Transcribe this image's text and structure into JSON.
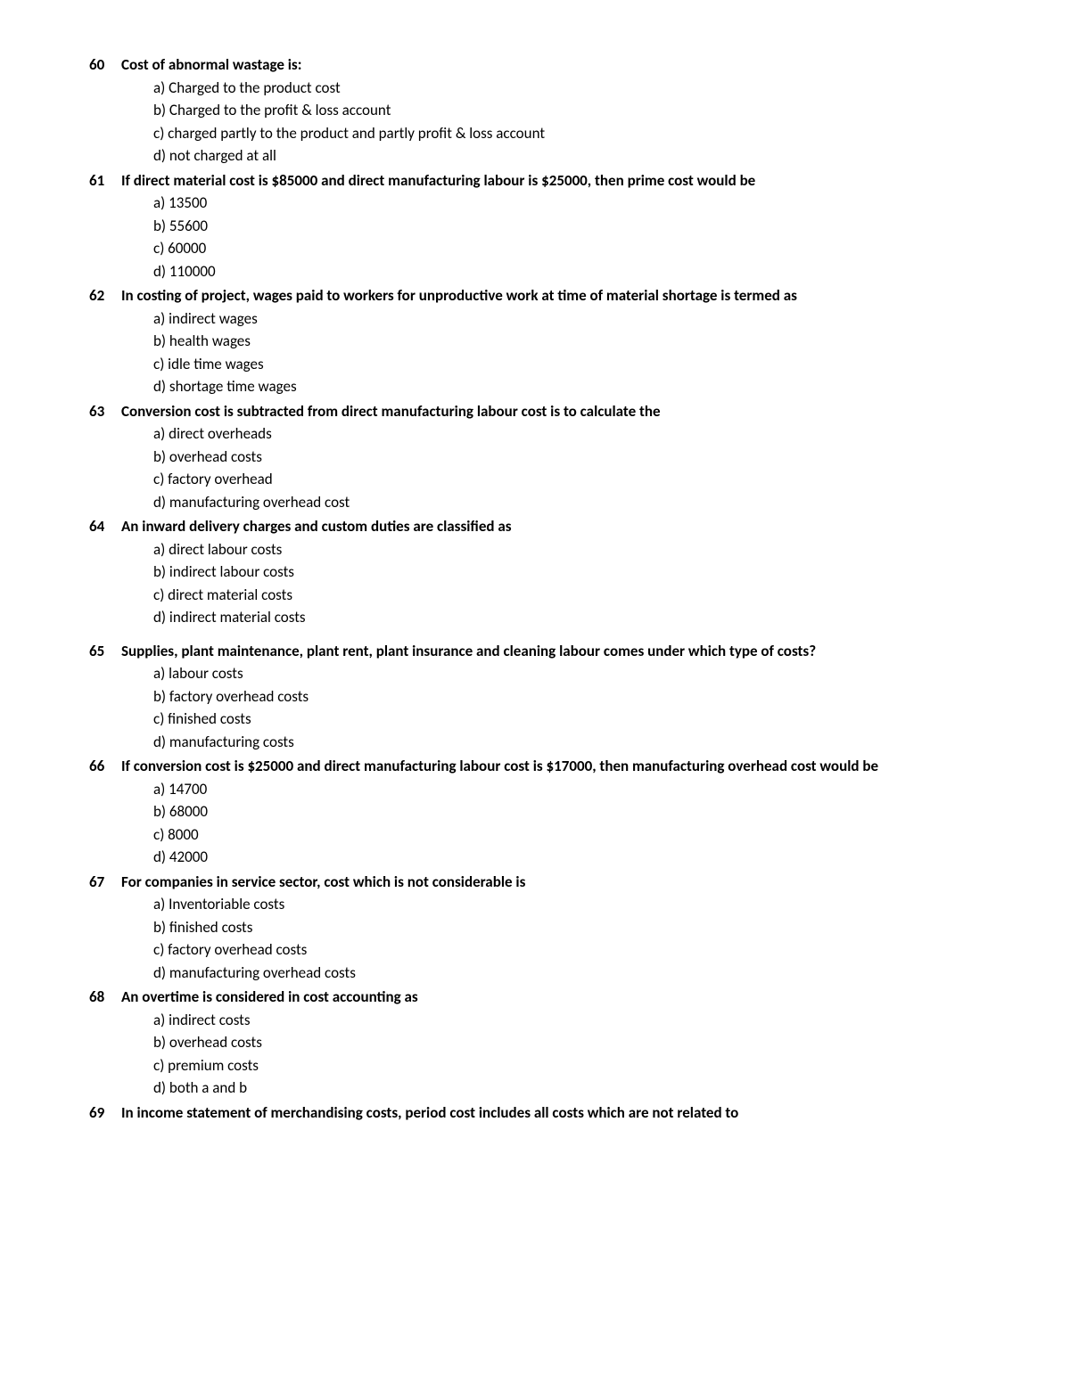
{
  "questions": [
    {
      "number": "60",
      "text": "Cost of abnormal wastage is:",
      "options": [
        "a) Charged to the product cost",
        "b) Charged to the profit & loss account",
        "c) charged partly to the product and partly profit & loss account",
        "d) not charged at all"
      ]
    },
    {
      "number": "61",
      "text": "If direct material cost is $85000 and direct manufacturing labour is $25000, then prime cost would be",
      "options": [
        "a) 13500",
        "b) 55600",
        "c) 60000",
        "d) 110000"
      ]
    },
    {
      "number": "62",
      "text": "In costing of project, wages paid to workers for unproductive work at time of material shortage is termed as",
      "options": [
        "a) indirect wages",
        "b) health wages",
        "c) idle time wages",
        "d) shortage time wages"
      ]
    },
    {
      "number": "63",
      "text": "Conversion cost is subtracted from direct manufacturing labour cost is to calculate the",
      "options": [
        "a) direct overheads",
        "b) overhead costs",
        "c) factory overhead",
        "d) manufacturing overhead cost"
      ]
    },
    {
      "number": "64",
      "text": "An inward delivery charges and custom duties are classified as",
      "options": [
        "a) direct labour costs",
        "b) indirect labour costs",
        "c) direct material costs",
        "d) indirect material costs"
      ]
    },
    {
      "number": "65",
      "text": "Supplies, plant maintenance, plant rent, plant insurance and cleaning labour comes under which type of costs?",
      "options": [
        "a) labour costs",
        "b) factory overhead costs",
        "c) finished costs",
        "d) manufacturing costs"
      ]
    },
    {
      "number": "66",
      "text": "If conversion cost is $25000 and direct manufacturing labour cost is $17000, then manufacturing overhead cost would be",
      "options": [
        "a) 14700",
        "b) 68000",
        "c) 8000",
        "d) 42000"
      ]
    },
    {
      "number": "67",
      "text": "For companies in service sector, cost which is not considerable is",
      "options": [
        "a) Inventoriable costs",
        "b) finished costs",
        "c) factory overhead costs",
        "d) manufacturing overhead costs"
      ]
    },
    {
      "number": "68",
      "text": "An overtime is considered in cost accounting as",
      "options": [
        "a) indirect costs",
        "b) overhead costs",
        "c) premium costs",
        "d) both a and b"
      ]
    },
    {
      "number": "69",
      "text": "In income statement of merchandising costs, period cost includes all costs which are not related to",
      "options": []
    }
  ],
  "spacing": {
    "extra_before_65": true
  }
}
